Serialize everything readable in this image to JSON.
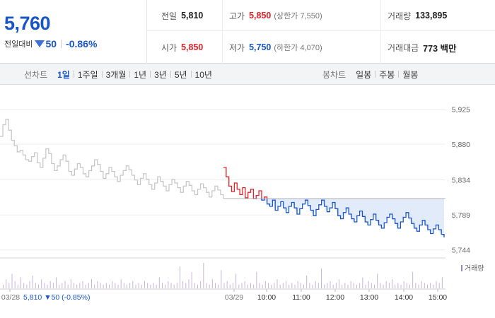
{
  "quote": {
    "price": "5,760",
    "change_label": "전일대비",
    "change_value": "50",
    "change_rate": "-0.86%"
  },
  "stats": {
    "prev_close_label": "전일",
    "prev_close": "5,810",
    "high_label": "고가",
    "high": "5,850",
    "upper_limit": "(상한가 7,550)",
    "volume_label": "거래량",
    "volume": "133,895",
    "open_label": "시가",
    "open": "5,850",
    "low_label": "저가",
    "low": "5,750",
    "lower_limit": "(하한가 4,070)",
    "trade_value_label": "거래대금",
    "trade_value": "773 백만"
  },
  "toolbar": {
    "line_title": "선차트",
    "line_items": [
      "1일",
      "1주일",
      "3개월",
      "1년",
      "3년",
      "5년",
      "10년"
    ],
    "candle_title": "봉차트",
    "candle_items": [
      "일봉",
      "주봉",
      "월봉"
    ]
  },
  "colors": {
    "accent": "#1a55c8",
    "up": "#e0242b",
    "down": "#1a55c8",
    "prev_day_line": "#c8c8c8",
    "fill": "#dfe9fa",
    "volume_bar": "#c4b6dc"
  },
  "chart_data": {
    "type": "line",
    "y_ticks": [
      "5,925",
      "5,880",
      "5,834",
      "5,789",
      "5,744"
    ],
    "y_tick_values": [
      5925,
      5880,
      5834,
      5789,
      5744
    ],
    "ylim": [
      5740,
      5940
    ],
    "reference_price": 5810,
    "x_ticks": [
      "03/28",
      "03/29",
      "10:00",
      "11:00",
      "12:00",
      "13:00",
      "14:00",
      "15:00"
    ],
    "prev_day_info": {
      "date": "03/28",
      "close": "5,810",
      "change": "▼50",
      "rate": "(-0.85%)"
    },
    "volume_legend": "거래량",
    "series": [
      {
        "name": "03/28",
        "values": [
          5890,
          5905,
          5912,
          5898,
          5885,
          5878,
          5870,
          5872,
          5866,
          5860,
          5858,
          5864,
          5869,
          5856,
          5850,
          5862,
          5874,
          5868,
          5855,
          5846,
          5852,
          5860,
          5866,
          5858,
          5845,
          5840,
          5848,
          5855,
          5850,
          5842,
          5838,
          5846,
          5852,
          5860,
          5854,
          5845,
          5836,
          5842,
          5850,
          5845,
          5838,
          5832,
          5840,
          5846,
          5852,
          5847,
          5840,
          5834,
          5828,
          5836,
          5842,
          5835,
          5828,
          5822,
          5830,
          5838,
          5832,
          5826,
          5820,
          5828,
          5835,
          5830,
          5824,
          5818,
          5826,
          5832,
          5827,
          5820,
          5815,
          5822,
          5829,
          5824,
          5818,
          5812,
          5820,
          5826,
          5821,
          5815,
          5810
        ]
      },
      {
        "name": "03/29",
        "values": [
          5850,
          5838,
          5826,
          5819,
          5830,
          5822,
          5815,
          5824,
          5811,
          5818,
          5822,
          5810,
          5814,
          5820,
          5808,
          5812,
          5803,
          5800,
          5808,
          5795,
          5800,
          5806,
          5798,
          5792,
          5800,
          5805,
          5798,
          5790,
          5797,
          5803,
          5808,
          5801,
          5795,
          5788,
          5796,
          5802,
          5808,
          5800,
          5793,
          5798,
          5805,
          5797,
          5788,
          5784,
          5792,
          5798,
          5790,
          5784,
          5780,
          5788,
          5794,
          5787,
          5780,
          5776,
          5783,
          5790,
          5782,
          5776,
          5772,
          5779,
          5786,
          5790,
          5784,
          5778,
          5772,
          5780,
          5786,
          5792,
          5785,
          5778,
          5772,
          5768,
          5776,
          5782,
          5776,
          5770,
          5765,
          5771,
          5776,
          5770,
          5764,
          5760
        ]
      }
    ],
    "volume": [
      2,
      5,
      3,
      8,
      4,
      2,
      6,
      3,
      2,
      4,
      7,
      3,
      2,
      5,
      3,
      2,
      4,
      3,
      6,
      2,
      3,
      4,
      2,
      5,
      3,
      2,
      3,
      4,
      2,
      3,
      5,
      2,
      4,
      3,
      2,
      3,
      2,
      4,
      3,
      2,
      5,
      3,
      2,
      3,
      4,
      2,
      3,
      2,
      4,
      3,
      2,
      3,
      2,
      6,
      3,
      2,
      4,
      3,
      2,
      3,
      12,
      4,
      3,
      5,
      9,
      3,
      2,
      4,
      14,
      3,
      2,
      5,
      3,
      2,
      10,
      3,
      4,
      2,
      3,
      8,
      2,
      3,
      4,
      2,
      3,
      2,
      9,
      3,
      2,
      4,
      3,
      2,
      3,
      5,
      2,
      3,
      4,
      2,
      3,
      2,
      4,
      3,
      2,
      7,
      3,
      2,
      4,
      3,
      11,
      2,
      3,
      4,
      2,
      3,
      5,
      2,
      3,
      2,
      4,
      3,
      2,
      3,
      6,
      2,
      4,
      3,
      2,
      8,
      3,
      2,
      4,
      3,
      5,
      2,
      3,
      2,
      4,
      3,
      2,
      9,
      3,
      2,
      4,
      3,
      2,
      3,
      2,
      4,
      3,
      6
    ]
  }
}
